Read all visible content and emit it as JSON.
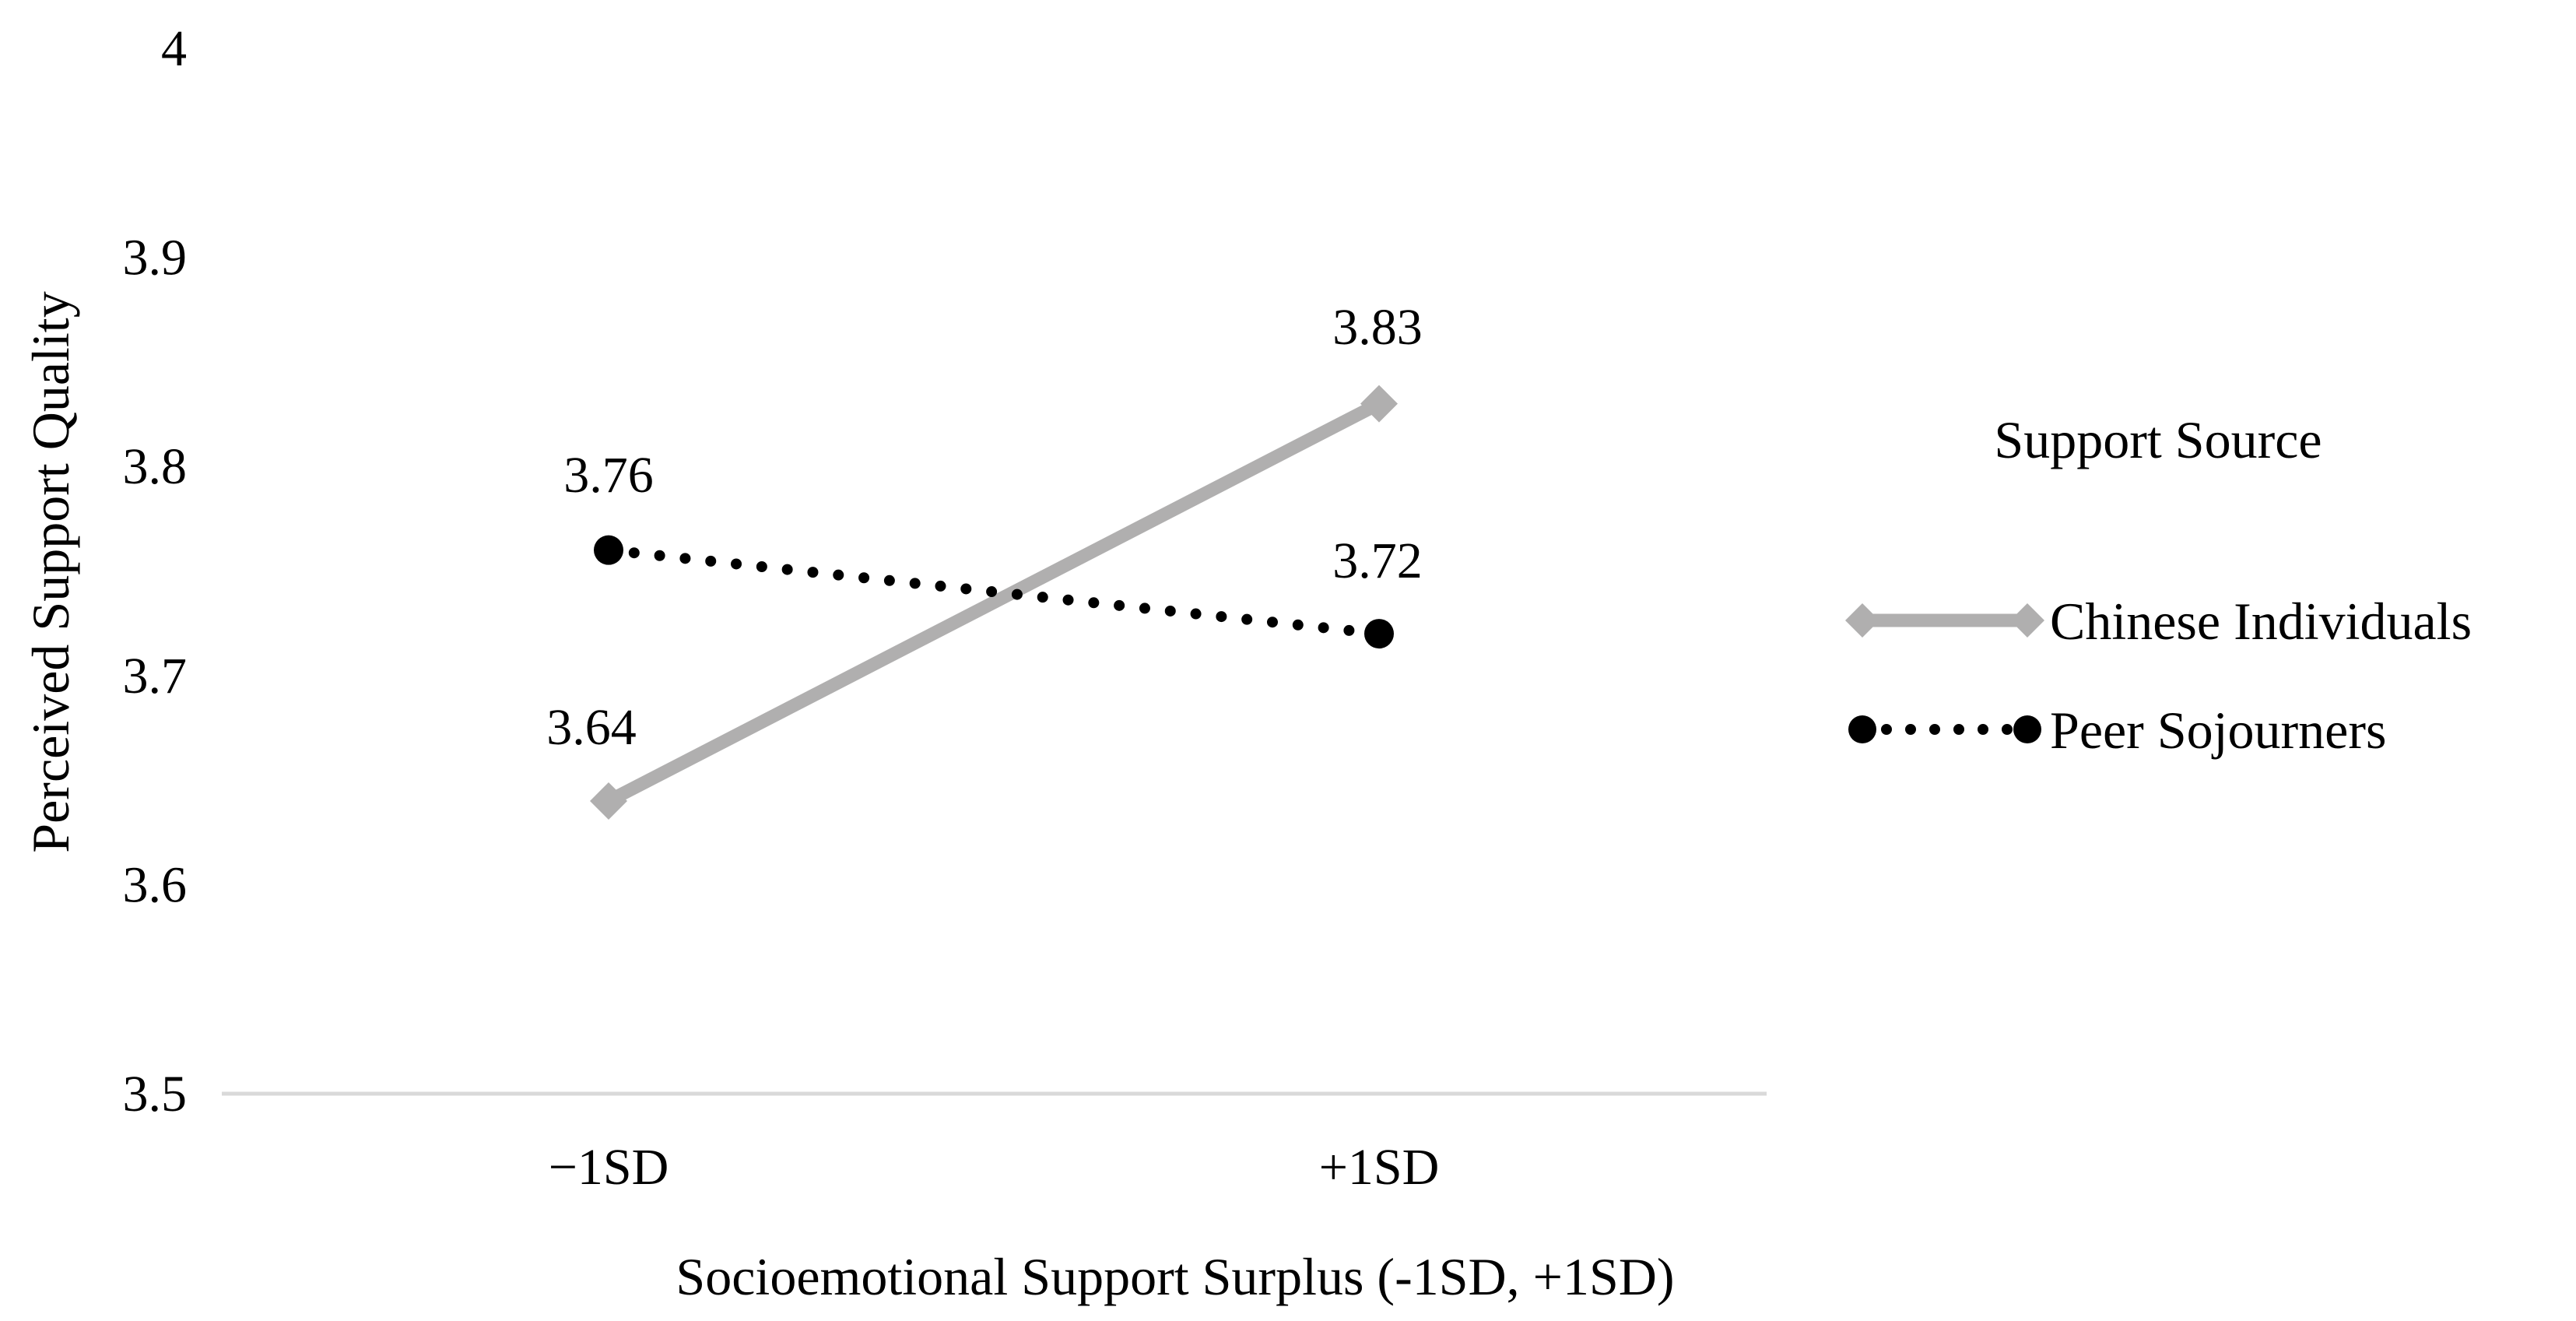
{
  "chart_data": {
    "type": "line",
    "title": "",
    "xlabel": "Socioemotional Support Surplus (-1SD, +1SD)",
    "ylabel": "Perceived Support Quality",
    "categories": [
      "−1SD",
      "+1SD"
    ],
    "ylim": [
      3.5,
      4.0
    ],
    "yticks": [
      3.5,
      3.6,
      3.7,
      3.8,
      3.9,
      4.0
    ],
    "ytick_labels": [
      "3.5",
      "3.6",
      "3.7",
      "3.8",
      "3.9",
      "4"
    ],
    "grid": false,
    "legend": {
      "title": "Support Source",
      "placement": "right"
    },
    "series": [
      {
        "name": "Chinese Individuals",
        "values": [
          3.64,
          3.83
        ],
        "labels": [
          "3.64",
          "3.83"
        ],
        "color": "#b0afaf",
        "line_style": "solid",
        "marker": "diamond"
      },
      {
        "name": "Peer Sojourners",
        "values": [
          3.76,
          3.72
        ],
        "labels": [
          "3.76",
          "3.72"
        ],
        "color": "#000000",
        "line_style": "dotted",
        "marker": "circle"
      }
    ]
  }
}
